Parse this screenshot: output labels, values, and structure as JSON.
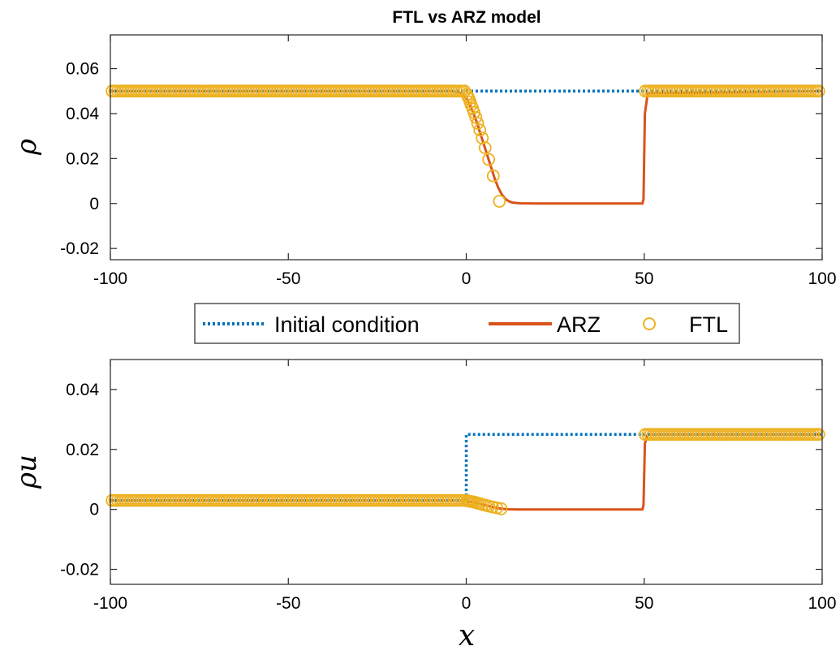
{
  "chart_data": [
    {
      "type": "line",
      "title": "FTL vs ARZ model",
      "ylabel": "ρ",
      "xlim": [
        -100,
        100
      ],
      "ylim": [
        -0.025,
        0.075
      ],
      "xticks": [
        "-100",
        "-50",
        "0",
        "50",
        "100"
      ],
      "yticks": [
        "-0.02",
        "0",
        "0.02",
        "0.04",
        "0.06"
      ],
      "grid": false,
      "series": [
        {
          "name": "Initial condition",
          "style": "dotted",
          "color": "#0072BD",
          "x": [
            -100,
            0,
            0,
            50,
            50,
            100
          ],
          "y": [
            0.05,
            0.05,
            0.05,
            0.05,
            0.05,
            0.05
          ]
        },
        {
          "name": "ARZ",
          "style": "solid",
          "color": "#D95319",
          "x": [
            -100,
            -4,
            -2,
            0,
            1,
            2,
            3,
            4,
            5,
            6,
            7,
            8,
            9,
            10,
            11,
            12,
            13,
            15,
            20,
            49.5,
            49.8,
            50.2,
            51,
            100
          ],
          "y": [
            0.05,
            0.05,
            0.0495,
            0.047,
            0.044,
            0.04,
            0.036,
            0.031,
            0.026,
            0.021,
            0.016,
            0.011,
            0.007,
            0.004,
            0.002,
            0.001,
            0.0004,
            0.0001,
            0,
            0,
            0.002,
            0.04,
            0.049,
            0.05
          ]
        },
        {
          "name": "FTL",
          "style": "markers",
          "color": "#EDB120",
          "x": [
            0.2,
            0.5,
            0.8,
            1.1,
            1.4,
            1.8,
            2.2,
            2.7,
            3.2,
            3.8,
            4.5,
            5.3,
            6.3,
            7.6,
            9.3
          ],
          "y": [
            0.0485,
            0.0475,
            0.0465,
            0.0452,
            0.0438,
            0.0423,
            0.0405,
            0.0383,
            0.0357,
            0.0327,
            0.0291,
            0.0248,
            0.0196,
            0.0123,
            0.001
          ]
        }
      ]
    },
    {
      "type": "line",
      "title": "",
      "xlabel": "x",
      "ylabel": "ρu",
      "xlim": [
        -100,
        100
      ],
      "ylim": [
        -0.025,
        0.05
      ],
      "xticks": [
        "-100",
        "-50",
        "0",
        "50",
        "100"
      ],
      "yticks": [
        "-0.02",
        "0",
        "0.02",
        "0.04"
      ],
      "grid": false,
      "series": [
        {
          "name": "Initial condition",
          "style": "dotted",
          "color": "#0072BD",
          "x": [
            -100,
            0,
            0,
            50,
            50,
            100
          ],
          "y": [
            0.003,
            0.003,
            0.025,
            0.025,
            0.025,
            0.025
          ]
        },
        {
          "name": "ARZ",
          "style": "solid",
          "color": "#D95319",
          "x": [
            -100,
            -3,
            -1,
            0,
            1,
            2,
            3,
            4,
            5,
            6,
            7,
            8,
            9,
            10,
            11,
            12,
            14,
            20,
            49.5,
            49.8,
            50.2,
            51,
            100
          ],
          "y": [
            0.003,
            0.003,
            0.0029,
            0.0028,
            0.0026,
            0.0024,
            0.0021,
            0.0018,
            0.0015,
            0.0012,
            0.0009,
            0.0006,
            0.0004,
            0.0002,
            0.0001,
            5e-05,
            0,
            0,
            0,
            0.0015,
            0.022,
            0.025,
            0.025
          ]
        },
        {
          "name": "FTL",
          "style": "markers",
          "color": "#EDB120",
          "x": [
            0.2,
            0.6,
            1.0,
            1.5,
            2.0,
            2.6,
            3.2,
            3.9,
            4.6,
            5.4,
            6.3,
            7.4,
            8.6,
            9.8
          ],
          "y": [
            0.0029,
            0.0028,
            0.0027,
            0.0026,
            0.0025,
            0.0023,
            0.0021,
            0.0019,
            0.0016,
            0.0014,
            0.0011,
            0.0008,
            0.0005,
            0.0002
          ]
        }
      ]
    }
  ],
  "legend": {
    "placement": "between-plots",
    "entries": [
      "Initial condition",
      "ARZ",
      "FTL"
    ]
  },
  "styles": {
    "initial_color": "#0072BD",
    "arz_color": "#D95319",
    "ftl_color": "#EDB120"
  }
}
